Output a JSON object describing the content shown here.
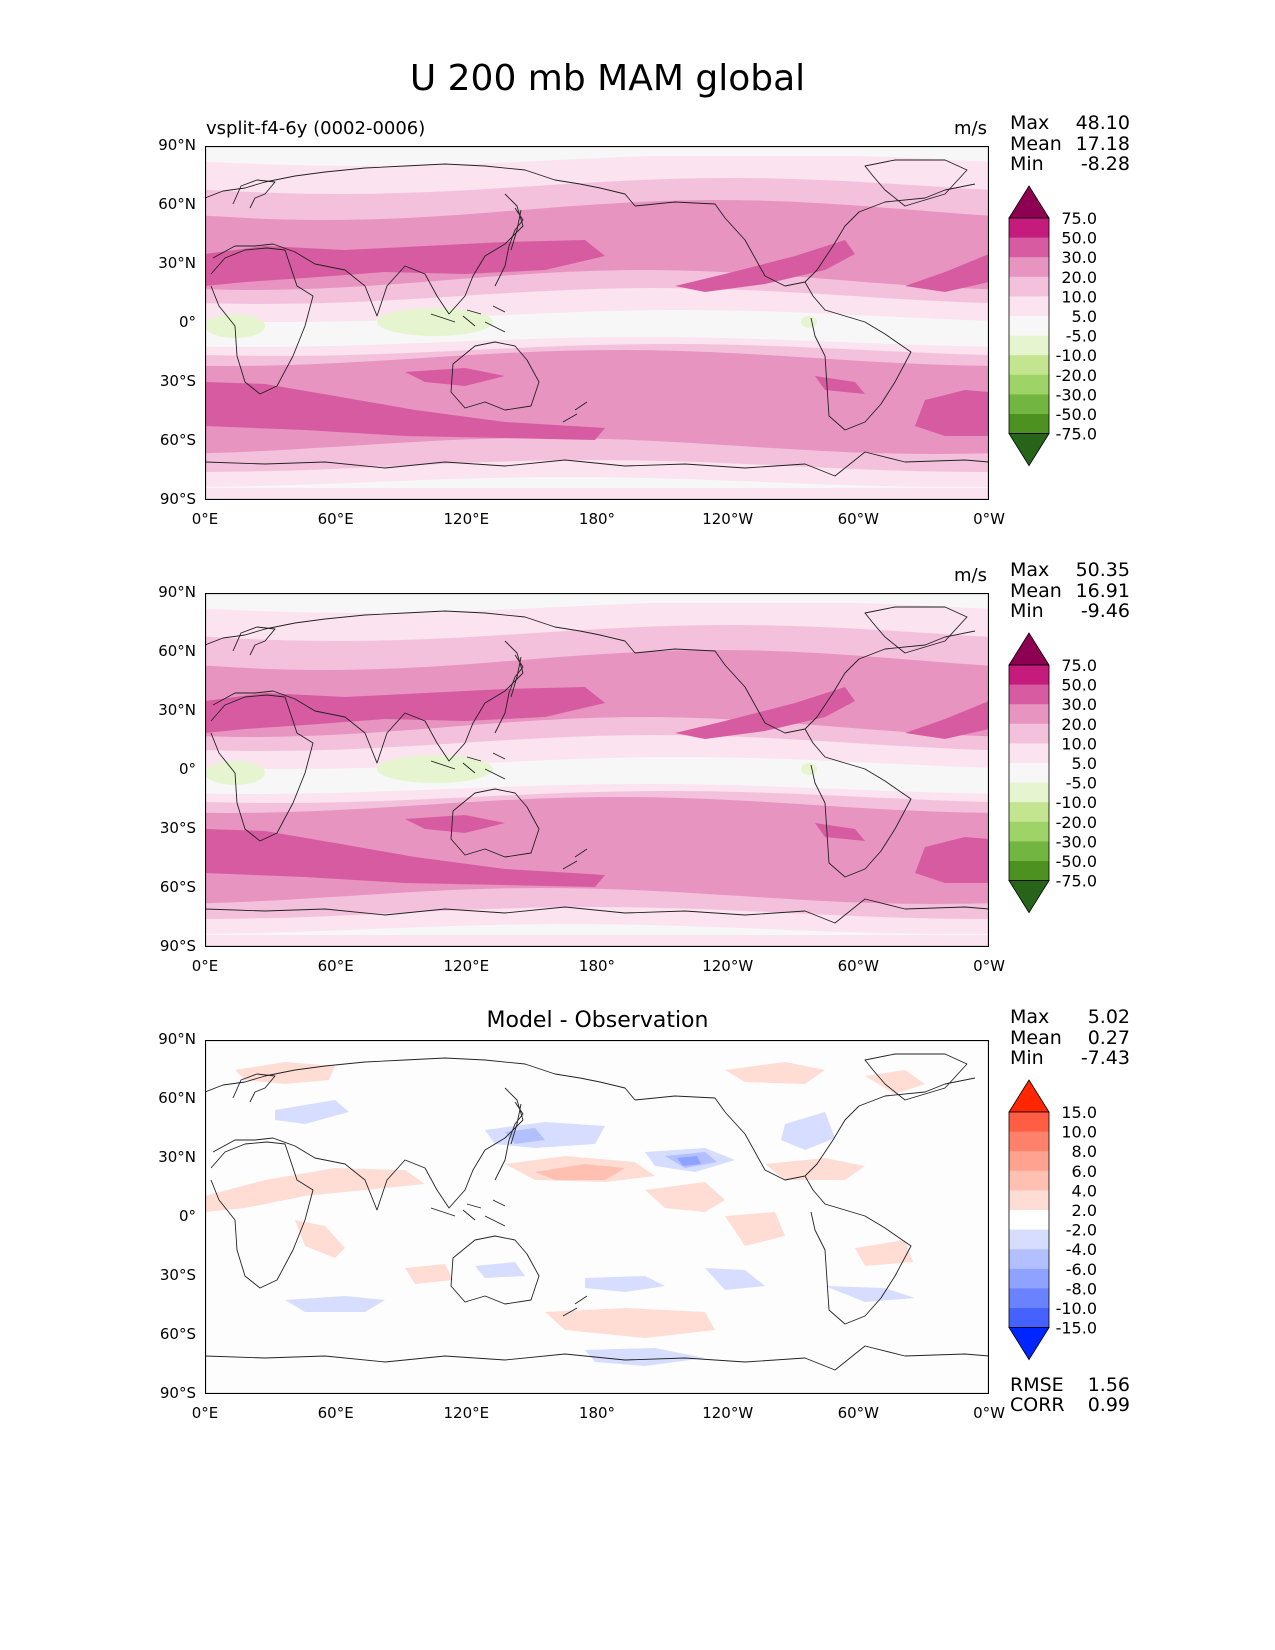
{
  "figure": {
    "title": "U 200 mb MAM global",
    "lat_labels": [
      "90°N",
      "60°N",
      "30°N",
      "0°",
      "30°S",
      "60°S",
      "90°S"
    ],
    "lon_labels": [
      "0°E",
      "60°E",
      "120°E",
      "180°",
      "120°W",
      "60°W",
      "0°W"
    ]
  },
  "panels": [
    {
      "left_title": "vsplit-f4-6y (0002-0006)",
      "center_title": "",
      "units": "m/s",
      "stats": [
        {
          "label": "Max",
          "value": "48.10"
        },
        {
          "label": "Mean",
          "value": "17.18"
        },
        {
          "label": "Min",
          "value": "-8.28"
        }
      ],
      "bottom_stats": []
    },
    {
      "left_title": "",
      "center_title": "",
      "units": "m/s",
      "stats": [
        {
          "label": "Max",
          "value": "50.35"
        },
        {
          "label": "Mean",
          "value": "16.91"
        },
        {
          "label": "Min",
          "value": "-9.46"
        }
      ],
      "bottom_stats": []
    },
    {
      "left_title": "",
      "center_title": "Model - Observation",
      "units": "",
      "stats": [
        {
          "label": "Max",
          "value": "5.02"
        },
        {
          "label": "Mean",
          "value": "0.27"
        },
        {
          "label": "Min",
          "value": "-7.43"
        }
      ],
      "bottom_stats": [
        {
          "label": "RMSE",
          "value": "1.56"
        },
        {
          "label": "CORR",
          "value": "0.99"
        }
      ]
    }
  ],
  "colorbars": {
    "field": {
      "levels": [
        "75.0",
        "50.0",
        "30.0",
        "20.0",
        "10.0",
        "5.0",
        "-5.0",
        "-10.0",
        "-20.0",
        "-30.0",
        "-50.0",
        "-75.0"
      ],
      "colors": [
        "#8e0152",
        "#c51b7d",
        "#d75ba1",
        "#e794c1",
        "#f4c1dd",
        "#fbe3ef",
        "#f7f7f7",
        "#e6f5d0",
        "#c3e58f",
        "#9ed467",
        "#72b541",
        "#4d9221",
        "#276419"
      ]
    },
    "diff": {
      "levels": [
        "15.0",
        "10.0",
        "8.0",
        "6.0",
        "4.0",
        "2.0",
        "-2.0",
        "-4.0",
        "-6.0",
        "-8.0",
        "-10.0",
        "-15.0"
      ],
      "colors": [
        "#ff2600",
        "#ff5e45",
        "#ff806b",
        "#ffa28f",
        "#ffc0b2",
        "#ffddd5",
        "#ffffff",
        "#d6ddff",
        "#b3c0ff",
        "#8fa2ff",
        "#6b82ff",
        "#4562ff",
        "#0026ff"
      ]
    }
  },
  "fields": {
    "model_bands": [
      {
        "level": "10.0",
        "color": "#f4c1dd"
      },
      {
        "level": "20.0",
        "color": "#e794c1"
      },
      {
        "level": "30.0",
        "color": "#d75ba1"
      },
      {
        "level": "-5.0",
        "color": "#e6f5d0"
      }
    ],
    "diff_blobs": [
      {
        "level": "2.0",
        "color": "#ffddd5"
      },
      {
        "level": "4.0",
        "color": "#ffc0b2"
      },
      {
        "level": "-2.0",
        "color": "#d6ddff"
      },
      {
        "level": "-4.0",
        "color": "#b3c0ff"
      },
      {
        "level": "-6.0",
        "color": "#8fa2ff"
      }
    ]
  }
}
